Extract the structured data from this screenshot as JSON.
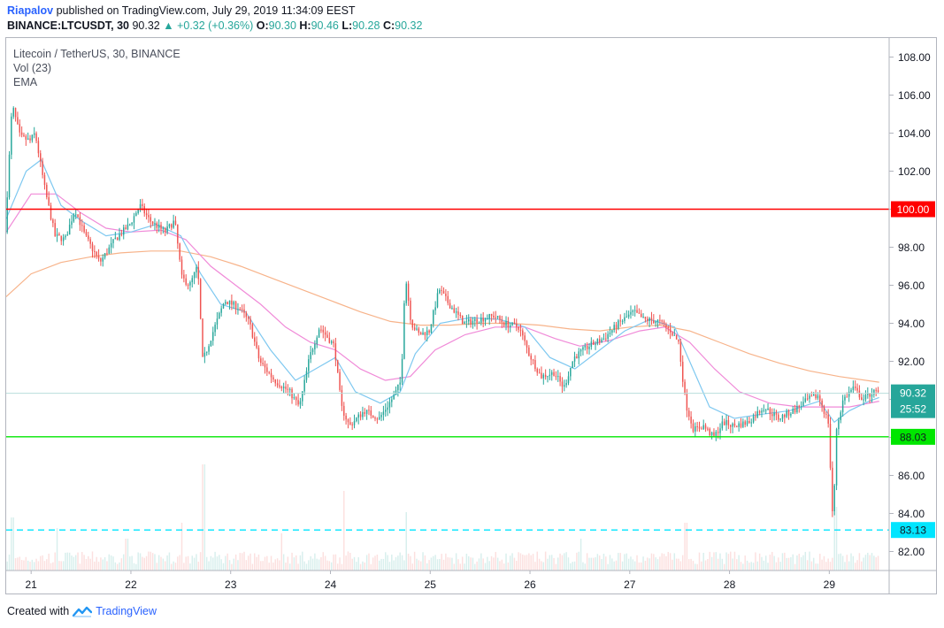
{
  "header": {
    "user": "Riapalov",
    "published": "published on TradingView.com, July 29, 2019 11:34:09 EEST",
    "symbol": "BINANCE:LTCUSDT, 30",
    "last": "90.32",
    "change": "▲ +0.32 (+0.36%)",
    "ohlc_o_label": "O:",
    "ohlc_o": "90.30",
    "ohlc_h_label": "H:",
    "ohlc_h": "90.46",
    "ohlc_l_label": "L:",
    "ohlc_l": "90.28",
    "ohlc_c_label": "C:",
    "ohlc_c": "90.32"
  },
  "legend": {
    "title": "Litecoin / TetherUS, 30, BINANCE",
    "volume": "Vol (23)",
    "ema": "EMA"
  },
  "footer": {
    "created_with": "Created with",
    "brand": "TradingView"
  },
  "colors": {
    "up": "#26a69a",
    "down": "#ef5350",
    "resistance": "#ff0000",
    "support": "#00e600",
    "target": "#00e5ff",
    "ema_fast": "#7ec8f0",
    "ema_mid": "#f08ad8",
    "ema_slow": "#f7b38a"
  },
  "chart_data": {
    "type": "candlestick",
    "timeframe": "30",
    "x_ticks": [
      "21",
      "22",
      "23",
      "24",
      "25",
      "26",
      "27",
      "28",
      "29"
    ],
    "y_ticks": [
      "82.00",
      "84.00",
      "86.00",
      "88.00",
      "90.00",
      "92.00",
      "94.00",
      "96.00",
      "98.00",
      "100.00",
      "102.00",
      "104.00",
      "106.00",
      "108.00"
    ],
    "ylim": [
      81.0,
      109.0
    ],
    "xlim": [
      20.75,
      29.6
    ],
    "price_path": [
      [
        20.75,
        98.8
      ],
      [
        20.82,
        105.5
      ],
      [
        20.9,
        103.8
      ],
      [
        21.0,
        103.6
      ],
      [
        21.05,
        104.0
      ],
      [
        21.15,
        101.0
      ],
      [
        21.25,
        98.6
      ],
      [
        21.35,
        98.4
      ],
      [
        21.45,
        100.0
      ],
      [
        21.55,
        98.6
      ],
      [
        21.7,
        97.2
      ],
      [
        21.85,
        98.4
      ],
      [
        22.0,
        99.2
      ],
      [
        22.1,
        100.2
      ],
      [
        22.2,
        99.4
      ],
      [
        22.35,
        98.8
      ],
      [
        22.45,
        99.4
      ],
      [
        22.52,
        96.4
      ],
      [
        22.6,
        96.0
      ],
      [
        22.68,
        97.0
      ],
      [
        22.73,
        92.0
      ],
      [
        22.85,
        93.8
      ],
      [
        22.95,
        95.2
      ],
      [
        23.1,
        94.8
      ],
      [
        23.2,
        94.0
      ],
      [
        23.3,
        92.0
      ],
      [
        23.45,
        91.0
      ],
      [
        23.6,
        90.4
      ],
      [
        23.7,
        89.6
      ],
      [
        23.8,
        92.2
      ],
      [
        23.9,
        93.8
      ],
      [
        24.05,
        92.8
      ],
      [
        24.12,
        89.6
      ],
      [
        24.2,
        88.6
      ],
      [
        24.35,
        89.4
      ],
      [
        24.5,
        89.0
      ],
      [
        24.65,
        90.2
      ],
      [
        24.72,
        91.0
      ],
      [
        24.76,
        96.6
      ],
      [
        24.82,
        94.0
      ],
      [
        24.9,
        93.4
      ],
      [
        25.0,
        93.6
      ],
      [
        25.1,
        95.8
      ],
      [
        25.2,
        95.0
      ],
      [
        25.35,
        94.0
      ],
      [
        25.5,
        94.2
      ],
      [
        25.65,
        94.4
      ],
      [
        25.75,
        94.0
      ],
      [
        25.9,
        93.8
      ],
      [
        26.0,
        92.4
      ],
      [
        26.12,
        91.2
      ],
      [
        26.25,
        91.4
      ],
      [
        26.35,
        90.6
      ],
      [
        26.45,
        92.2
      ],
      [
        26.6,
        92.8
      ],
      [
        26.75,
        93.2
      ],
      [
        26.9,
        94.0
      ],
      [
        27.05,
        94.6
      ],
      [
        27.15,
        94.2
      ],
      [
        27.3,
        94.1
      ],
      [
        27.42,
        93.6
      ],
      [
        27.5,
        93.0
      ],
      [
        27.57,
        89.8
      ],
      [
        27.65,
        88.4
      ],
      [
        27.75,
        88.6
      ],
      [
        27.85,
        88.0
      ],
      [
        27.95,
        88.8
      ],
      [
        28.05,
        88.6
      ],
      [
        28.2,
        88.8
      ],
      [
        28.35,
        89.6
      ],
      [
        28.5,
        89.0
      ],
      [
        28.65,
        89.4
      ],
      [
        28.8,
        90.0
      ],
      [
        28.9,
        90.2
      ],
      [
        29.0,
        88.8
      ],
      [
        29.03,
        85.4
      ],
      [
        29.05,
        83.2
      ],
      [
        29.08,
        88.4
      ],
      [
        29.15,
        90.0
      ],
      [
        29.25,
        90.6
      ],
      [
        29.35,
        90.0
      ],
      [
        29.45,
        90.4
      ],
      [
        29.5,
        90.32
      ]
    ],
    "ema_fast": [
      [
        20.75,
        99.5
      ],
      [
        20.95,
        102.0
      ],
      [
        21.1,
        102.6
      ],
      [
        21.3,
        100.2
      ],
      [
        21.5,
        99.4
      ],
      [
        21.75,
        98.6
      ],
      [
        22.0,
        98.8
      ],
      [
        22.25,
        99.2
      ],
      [
        22.5,
        98.6
      ],
      [
        22.7,
        96.6
      ],
      [
        22.9,
        95.0
      ],
      [
        23.15,
        94.6
      ],
      [
        23.4,
        92.6
      ],
      [
        23.65,
        91.0
      ],
      [
        23.85,
        91.6
      ],
      [
        24.05,
        92.2
      ],
      [
        24.25,
        90.4
      ],
      [
        24.5,
        89.8
      ],
      [
        24.7,
        90.4
      ],
      [
        24.85,
        92.4
      ],
      [
        25.1,
        94.0
      ],
      [
        25.4,
        94.3
      ],
      [
        25.7,
        94.2
      ],
      [
        25.95,
        93.8
      ],
      [
        26.2,
        92.2
      ],
      [
        26.45,
        91.6
      ],
      [
        26.7,
        92.6
      ],
      [
        26.95,
        93.6
      ],
      [
        27.2,
        94.2
      ],
      [
        27.45,
        93.8
      ],
      [
        27.6,
        92.0
      ],
      [
        27.8,
        89.6
      ],
      [
        28.05,
        89.0
      ],
      [
        28.3,
        89.2
      ],
      [
        28.6,
        89.4
      ],
      [
        28.9,
        89.9
      ],
      [
        29.05,
        88.8
      ],
      [
        29.2,
        89.4
      ],
      [
        29.4,
        89.9
      ],
      [
        29.5,
        90.1
      ]
    ],
    "ema_mid": [
      [
        20.75,
        98.8
      ],
      [
        21.0,
        100.8
      ],
      [
        21.25,
        100.8
      ],
      [
        21.5,
        99.8
      ],
      [
        21.75,
        99.0
      ],
      [
        22.0,
        98.8
      ],
      [
        22.3,
        98.9
      ],
      [
        22.55,
        98.4
      ],
      [
        22.8,
        97.0
      ],
      [
        23.05,
        96.0
      ],
      [
        23.3,
        95.0
      ],
      [
        23.55,
        93.8
      ],
      [
        23.8,
        93.0
      ],
      [
        24.05,
        92.6
      ],
      [
        24.3,
        91.6
      ],
      [
        24.55,
        91.0
      ],
      [
        24.8,
        91.2
      ],
      [
        25.05,
        92.6
      ],
      [
        25.35,
        93.4
      ],
      [
        25.65,
        93.8
      ],
      [
        25.95,
        93.8
      ],
      [
        26.25,
        93.2
      ],
      [
        26.5,
        92.8
      ],
      [
        26.8,
        93.1
      ],
      [
        27.1,
        93.6
      ],
      [
        27.35,
        93.8
      ],
      [
        27.6,
        93.0
      ],
      [
        27.85,
        91.6
      ],
      [
        28.1,
        90.4
      ],
      [
        28.4,
        89.8
      ],
      [
        28.7,
        89.6
      ],
      [
        29.0,
        89.6
      ],
      [
        29.2,
        89.6
      ],
      [
        29.5,
        89.9
      ]
    ],
    "ema_slow": [
      [
        20.75,
        95.4
      ],
      [
        21.0,
        96.6
      ],
      [
        21.3,
        97.2
      ],
      [
        21.6,
        97.5
      ],
      [
        21.9,
        97.7
      ],
      [
        22.2,
        97.8
      ],
      [
        22.5,
        97.8
      ],
      [
        22.8,
        97.5
      ],
      [
        23.1,
        97.0
      ],
      [
        23.4,
        96.4
      ],
      [
        23.7,
        95.8
      ],
      [
        24.0,
        95.2
      ],
      [
        24.3,
        94.6
      ],
      [
        24.6,
        94.1
      ],
      [
        24.9,
        93.9
      ],
      [
        25.2,
        93.9
      ],
      [
        25.5,
        94.0
      ],
      [
        25.8,
        94.0
      ],
      [
        26.1,
        93.9
      ],
      [
        26.4,
        93.7
      ],
      [
        26.7,
        93.6
      ],
      [
        27.0,
        93.8
      ],
      [
        27.3,
        93.9
      ],
      [
        27.6,
        93.6
      ],
      [
        27.9,
        93.0
      ],
      [
        28.2,
        92.4
      ],
      [
        28.5,
        91.9
      ],
      [
        28.8,
        91.5
      ],
      [
        29.1,
        91.2
      ],
      [
        29.5,
        90.9
      ]
    ],
    "volume_spikes": [
      [
        20.8,
        0.5
      ],
      [
        21.25,
        0.4
      ],
      [
        21.95,
        0.3
      ],
      [
        22.5,
        0.45
      ],
      [
        22.72,
        1.0
      ],
      [
        23.5,
        0.35
      ],
      [
        24.12,
        0.75
      ],
      [
        24.75,
        0.55
      ],
      [
        26.5,
        0.3
      ],
      [
        27.55,
        0.45
      ],
      [
        29.05,
        0.6
      ]
    ],
    "levels": [
      {
        "price": 100.0,
        "label": "100.00",
        "style": "solid",
        "role": "resistance"
      },
      {
        "price": 88.03,
        "label": "88.03",
        "style": "solid",
        "role": "support"
      },
      {
        "price": 83.13,
        "label": "83.13",
        "style": "dashed",
        "role": "target"
      }
    ],
    "last_price": {
      "price": 90.32,
      "label": "90.32",
      "countdown": "25:52"
    }
  }
}
